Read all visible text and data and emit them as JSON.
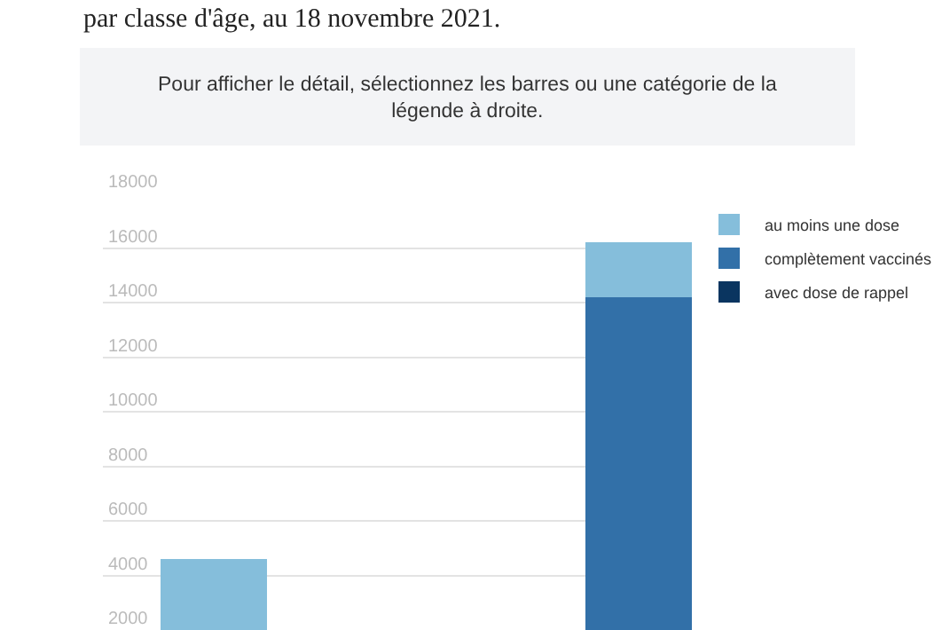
{
  "chart_data": {
    "type": "bar",
    "subtitle": "par classe d'âge, au 18 novembre 2021.",
    "annotations": [
      "Pour afficher le détail, sélectionnez les barres ou une catégorie de la légende à droite."
    ],
    "categories": [
      null,
      null,
      null
    ],
    "stacked": true,
    "series": [
      {
        "name": "avec dose de rappel",
        "color": "#0a3560",
        "values": [
          null,
          null,
          null
        ]
      },
      {
        "name": "complètement vaccinés",
        "color": "#3270a8",
        "values": [
          null,
          null,
          14200
        ]
      },
      {
        "name": "au moins une dose",
        "color": "#85bedb",
        "values": [
          4600,
          null,
          2000
        ]
      }
    ],
    "ylim": [
      2000,
      18000
    ],
    "yticks": [
      2000,
      4000,
      6000,
      8000,
      10000,
      12000,
      14000,
      16000,
      18000
    ],
    "grid": "y",
    "legend": "top right"
  }
}
